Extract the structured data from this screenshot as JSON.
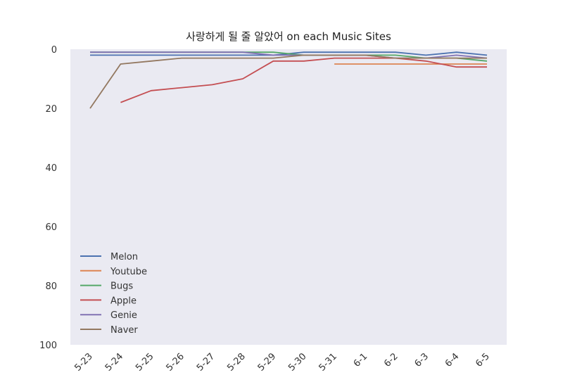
{
  "chart_data": {
    "type": "line",
    "title": "사랑하게 될 줄 알았어 on each Music Sites",
    "xlabel": "",
    "ylabel": "",
    "categories": [
      "5-23",
      "5-24",
      "5-25",
      "5-26",
      "5-27",
      "5-28",
      "5-29",
      "5-30",
      "5-31",
      "6-1",
      "6-2",
      "6-3",
      "6-4",
      "6-5"
    ],
    "ylim": [
      100,
      0
    ],
    "yticks": [
      0,
      20,
      40,
      60,
      80,
      100
    ],
    "y_inverted": true,
    "grid": false,
    "background": "#EAEAF2",
    "legend_position": "lower-left",
    "series": [
      {
        "name": "Melon",
        "color": "#4C72B0",
        "values": [
          2,
          2,
          2,
          2,
          2,
          2,
          2,
          1,
          1,
          1,
          1,
          2,
          1,
          2
        ]
      },
      {
        "name": "Youtube",
        "color": "#DD8452",
        "values": [
          null,
          null,
          null,
          null,
          null,
          null,
          null,
          null,
          5,
          5,
          5,
          5,
          5,
          5
        ]
      },
      {
        "name": "Bugs",
        "color": "#55A868",
        "values": [
          1,
          1,
          1,
          1,
          1,
          1,
          1,
          2,
          2,
          2,
          2,
          3,
          3,
          4
        ]
      },
      {
        "name": "Apple",
        "color": "#C44E52",
        "values": [
          null,
          18,
          14,
          13,
          12,
          10,
          4,
          4,
          3,
          3,
          3,
          4,
          6,
          6
        ]
      },
      {
        "name": "Genie",
        "color": "#8172B3",
        "values": [
          1,
          1,
          1,
          1,
          1,
          1,
          2,
          2,
          2,
          2,
          3,
          3,
          2,
          3
        ]
      },
      {
        "name": "Naver",
        "color": "#937860",
        "values": [
          20,
          5,
          4,
          3,
          3,
          3,
          3,
          2,
          2,
          2,
          3,
          3,
          3,
          3
        ]
      }
    ]
  }
}
